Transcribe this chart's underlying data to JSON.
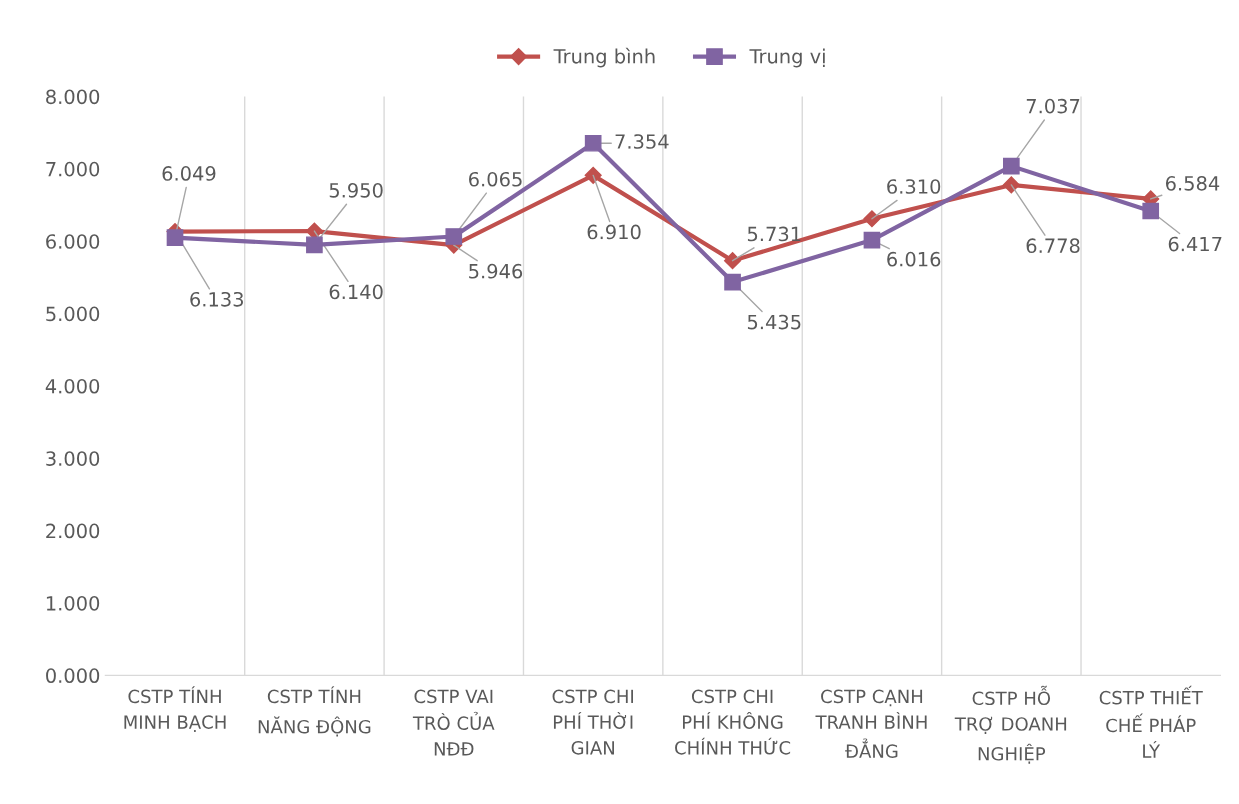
{
  "chart_data": {
    "type": "line",
    "categories": [
      "CSTP TÍNH MINH BẠCH",
      "CSTP TÍNH NĂNG ĐỘNG",
      "CSTP VAI TRÒ CỦA NĐĐ",
      "CSTP CHI PHÍ THỜI GIAN",
      "CSTP CHI PHÍ KHÔNG CHÍNH THỨC",
      "CSTP CẠNH TRANH BÌNH ĐẲNG",
      "CSTP HỖ TRỢ DOANH NGHIỆP",
      "CSTP THIẾT CHẾ PHÁP LÝ"
    ],
    "series": [
      {
        "name": "Trung bình",
        "color": "#c0504d",
        "marker": "diamond",
        "values": [
          6.133,
          6.14,
          5.946,
          6.91,
          5.731,
          6.31,
          6.778,
          6.584
        ],
        "value_labels": [
          "6.133",
          "6.140",
          "5.946",
          "6.910",
          "5.731",
          "6.310",
          "6.778",
          "6.584"
        ]
      },
      {
        "name": "Trung vị",
        "color": "#8064a2",
        "marker": "square",
        "values": [
          6.049,
          5.95,
          6.065,
          7.354,
          5.435,
          6.016,
          7.037,
          6.417
        ],
        "value_labels": [
          "6.049",
          "5.950",
          "6.065",
          "7.354",
          "5.435",
          "6.016",
          "7.037",
          "6.417"
        ]
      }
    ],
    "ylim": [
      0,
      8
    ],
    "yticks": [
      {
        "value": 0,
        "label": "0.000"
      },
      {
        "value": 1,
        "label": "1.000"
      },
      {
        "value": 2,
        "label": "2.000"
      },
      {
        "value": 3,
        "label": "3.000"
      },
      {
        "value": 4,
        "label": "4.000"
      },
      {
        "value": 5,
        "label": "5.000"
      },
      {
        "value": 6,
        "label": "6.000"
      },
      {
        "value": 7,
        "label": "7.000"
      },
      {
        "value": 8,
        "label": "8.000"
      }
    ],
    "grid": "x",
    "legend": "top",
    "line_style": "solid"
  }
}
